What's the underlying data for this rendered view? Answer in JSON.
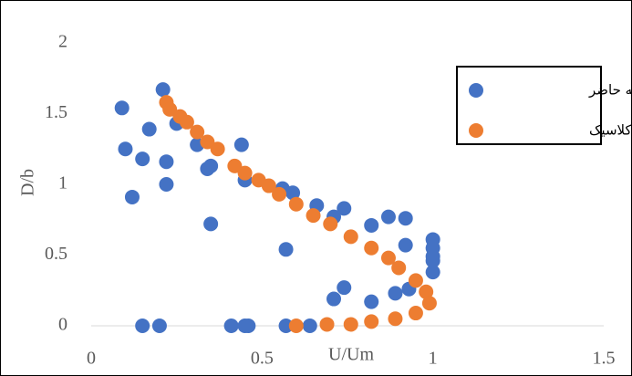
{
  "chart_data": {
    "type": "scatter",
    "x_label": "U/Um",
    "y_label": "D/b",
    "xlim": [
      0,
      1.5
    ],
    "ylim": [
      0,
      2
    ],
    "xticks": [
      0,
      0.5,
      1,
      1.5
    ],
    "yticks": [
      0,
      0.5,
      1,
      1.5,
      2
    ],
    "grid": false,
    "legend": "top-right",
    "series": [
      {
        "name": "مطالعه حاضر",
        "color": "#4472c4",
        "x": [
          0.09,
          0.1,
          0.12,
          0.15,
          0.17,
          0.21,
          0.22,
          0.22,
          0.25,
          0.31,
          0.34,
          0.35,
          0.35,
          0.44,
          0.45,
          0.56,
          0.59,
          0.57,
          0.66,
          0.71,
          0.74,
          0.74,
          0.71,
          0.82,
          0.82,
          0.87,
          0.92,
          0.92,
          0.89,
          0.93,
          1,
          1,
          1,
          1,
          1,
          0.15,
          0.2,
          0.41,
          0.45,
          0.46,
          0.57,
          0.64
        ],
        "values": [
          1.54,
          1.25,
          0.91,
          1.18,
          1.39,
          1.67,
          1.16,
          1.0,
          1.43,
          1.28,
          1.11,
          1.13,
          0.72,
          1.28,
          1.03,
          0.97,
          0.94,
          0.54,
          0.85,
          0.77,
          0.83,
          0.27,
          0.19,
          0.17,
          0.71,
          0.77,
          0.76,
          0.57,
          0.23,
          0.26,
          0.61,
          0.55,
          0.49,
          0.46,
          0.38,
          0,
          0,
          0,
          0,
          0,
          0,
          0
        ]
      },
      {
        "name": "کلاسیک",
        "color": "#ed7d31",
        "x": [
          0.22,
          0.23,
          0.26,
          0.28,
          0.31,
          0.34,
          0.37,
          0.42,
          0.45,
          0.49,
          0.52,
          0.55,
          0.6,
          0.65,
          0.7,
          0.76,
          0.82,
          0.87,
          0.9,
          0.95,
          0.98,
          0.99,
          0.95,
          0.89,
          0.82,
          0.76,
          0.69,
          0.6
        ],
        "values": [
          1.58,
          1.53,
          1.48,
          1.44,
          1.37,
          1.3,
          1.25,
          1.13,
          1.08,
          1.03,
          0.99,
          0.93,
          0.86,
          0.78,
          0.72,
          0.63,
          0.55,
          0.48,
          0.41,
          0.32,
          0.24,
          0.16,
          0.09,
          0.05,
          0.03,
          0.01,
          0.01,
          0
        ]
      }
    ]
  }
}
